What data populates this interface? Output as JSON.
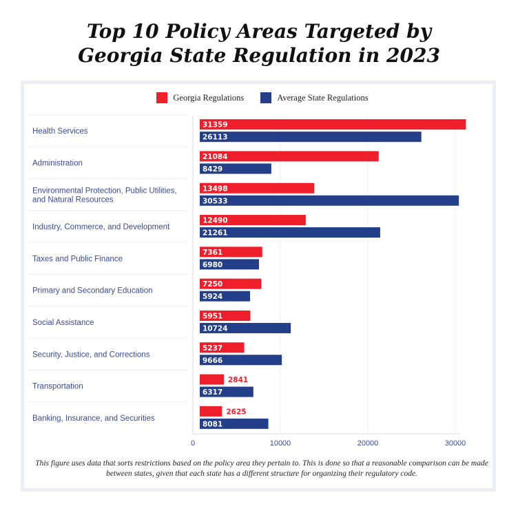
{
  "title_line1": "Top 10 Policy Areas Targeted by",
  "title_line2": "Georgia State Regulation in 2023",
  "footnote": "This figure uses data that sorts restrictions based on the policy area they pertain to. This is done so that a reasonable comparison can be made between states, given that each state has a different structure for organizing their regulatory code.",
  "chart_data": {
    "type": "bar",
    "orientation": "horizontal",
    "categories": [
      [
        "Health Services"
      ],
      [
        "Administration"
      ],
      [
        "Environmental Protection, Public Utilities,",
        "and Natural Resources"
      ],
      [
        "Industry, Commerce, and Development"
      ],
      [
        "Taxes and Public Finance"
      ],
      [
        "Primary and Secondary Education"
      ],
      [
        "Social Assistance"
      ],
      [
        "Security, Justice, and Corrections"
      ],
      [
        "Transportation"
      ],
      [
        "Banking, Insurance, and Securities"
      ]
    ],
    "series": [
      {
        "name": "Georgia Regulations",
        "color": "#ee1f2b",
        "values": [
          31359,
          21084,
          13498,
          12490,
          7361,
          7250,
          5951,
          5237,
          2841,
          2625
        ]
      },
      {
        "name": "Average State Regulations",
        "color": "#233f8a",
        "values": [
          26113,
          8429,
          30533,
          21261,
          6980,
          5924,
          10724,
          9666,
          6317,
          8081
        ]
      }
    ],
    "xticks": [
      0,
      10000,
      20000,
      30000
    ],
    "xlim": [
      0,
      31500
    ],
    "grid": true,
    "legend": "top-center",
    "data_labels": true
  }
}
